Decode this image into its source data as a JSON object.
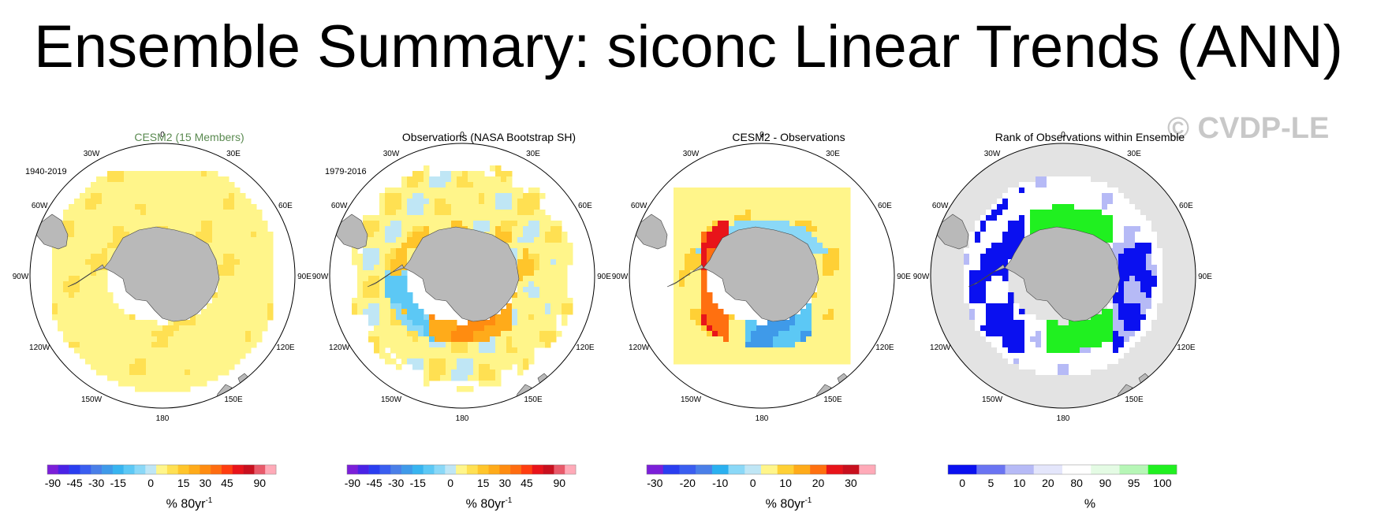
{
  "title": "Ensemble Summary: siconc Linear Trends (ANN)",
  "watermark": "© CVDP-LE",
  "longitude_labels": [
    "0",
    "30E",
    "60E",
    "90E",
    "120E",
    "150E",
    "180",
    "150W",
    "120W",
    "90W",
    "60W",
    "30W"
  ],
  "colors": {
    "land": "#b9b9b9",
    "outside_disk": "#e3e3e3",
    "coastline": "#404040"
  },
  "panels": [
    {
      "title": "CESM2 (15 Members)",
      "title_color": "#5a8a50",
      "period": "1940-2019",
      "units": "% 80yr",
      "units_exp": "-1",
      "field": "cesm2",
      "colorbar": {
        "colors": [
          "#7b1fd9",
          "#4a22e6",
          "#2a3ef0",
          "#3a5ef0",
          "#4a7fe8",
          "#3f9ae9",
          "#38b4f0",
          "#5cc8f5",
          "#8ad8f7",
          "#bfe6f5",
          "#fff58a",
          "#ffe052",
          "#ffc52b",
          "#ffab1a",
          "#ff8c10",
          "#ff6c10",
          "#ff3d10",
          "#e8141a",
          "#c8101e",
          "#e85a6a",
          "#ffaab8"
        ],
        "ticks": [
          "-90",
          "-45",
          "-30",
          "-15",
          "0",
          "15",
          "30",
          "45",
          "90"
        ],
        "tick_positions": [
          1,
          3,
          5,
          7,
          10,
          13,
          15,
          17,
          20
        ]
      }
    },
    {
      "title": "Observations (NASA Bootstrap SH)",
      "title_color": "#000000",
      "period": "1979-2016",
      "units": "% 80yr",
      "units_exp": "-1",
      "field": "obs",
      "colorbar": {
        "colors": [
          "#7b1fd9",
          "#4a22e6",
          "#2a3ef0",
          "#3a5ef0",
          "#4a7fe8",
          "#3f9ae9",
          "#38b4f0",
          "#5cc8f5",
          "#8ad8f7",
          "#bfe6f5",
          "#fff58a",
          "#ffe052",
          "#ffc52b",
          "#ffab1a",
          "#ff8c10",
          "#ff6c10",
          "#ff3d10",
          "#e8141a",
          "#c8101e",
          "#e85a6a",
          "#ffaab8"
        ],
        "ticks": [
          "-90",
          "-45",
          "-30",
          "-15",
          "0",
          "15",
          "30",
          "45",
          "90"
        ],
        "tick_positions": [
          1,
          3,
          5,
          7,
          10,
          13,
          15,
          17,
          20
        ]
      }
    },
    {
      "title": "CESM2 - Observations",
      "title_color": "#000000",
      "period": "",
      "units": "% 80yr",
      "units_exp": "-1",
      "field": "diff",
      "colorbar": {
        "colors": [
          "#7b1fd9",
          "#2a3ef0",
          "#3a5ef0",
          "#4a7fe8",
          "#2ab0f0",
          "#8ad8f7",
          "#bfe6f5",
          "#fff58a",
          "#ffd035",
          "#ffab1a",
          "#ff7010",
          "#e8141a",
          "#c8101e",
          "#ffaab8"
        ],
        "ticks": [
          "-30",
          "-20",
          "-10",
          "0",
          "10",
          "20",
          "30"
        ],
        "tick_positions": [
          1,
          3,
          5,
          7,
          9,
          11,
          13
        ]
      }
    },
    {
      "title": "Rank of Observations within Ensemble",
      "title_color": "#000000",
      "period": "",
      "units": "%",
      "units_exp": "",
      "field": "rank",
      "colorbar": {
        "colors": [
          "#0a10f0",
          "#6a74f2",
          "#b6baf6",
          "#e4e6fb",
          "#ffffff",
          "#e4fbe4",
          "#b6f6b6",
          "#20f020"
        ],
        "ticks": [
          "0",
          "5",
          "10",
          "20",
          "80",
          "90",
          "95",
          "100"
        ],
        "tick_positions": [
          1,
          2,
          3,
          4,
          5,
          6,
          7,
          8
        ]
      }
    }
  ]
}
